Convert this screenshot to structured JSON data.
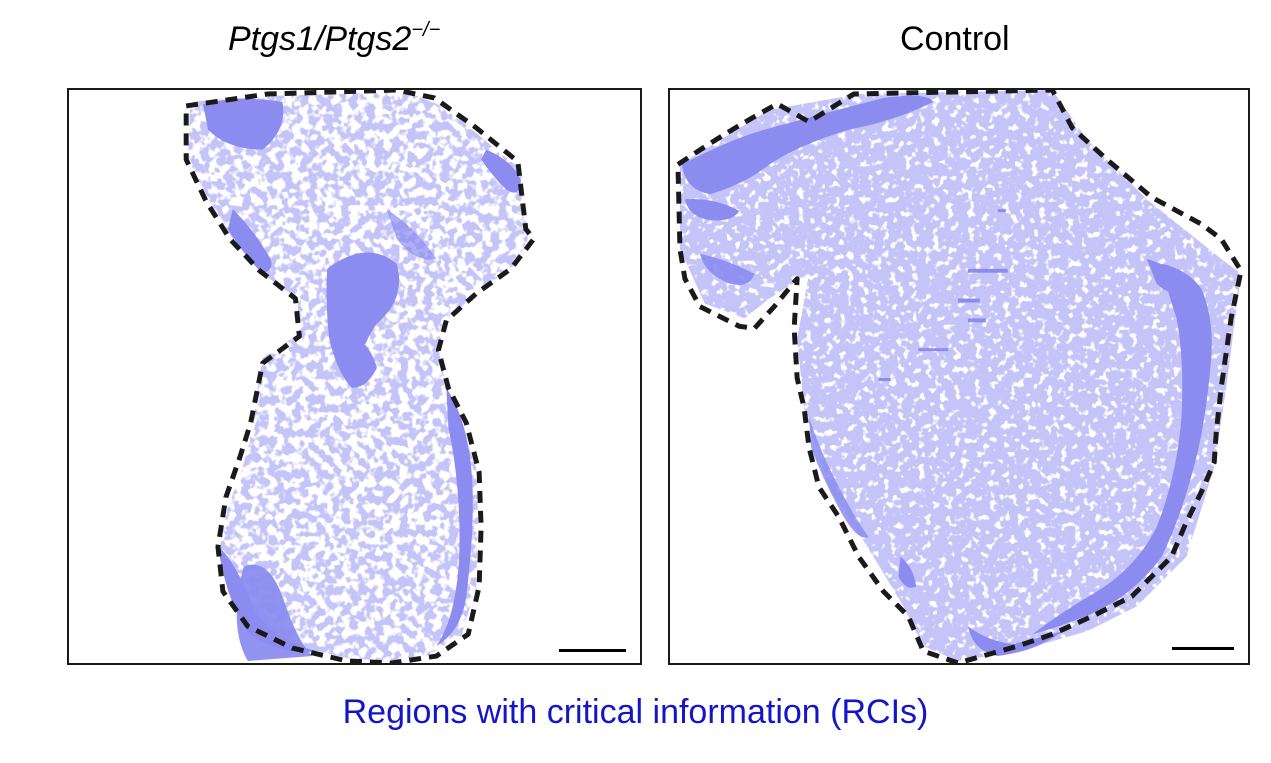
{
  "panels": {
    "left": {
      "title_main": "Ptgs1/Ptgs2",
      "title_sup": "−/−"
    },
    "right": {
      "title": "Control"
    }
  },
  "caption": "Regions with critical information (RCIs)",
  "colors": {
    "rci_fill": "#8c8cf0",
    "outline": "#1a1a1a",
    "caption": "#1414c8"
  }
}
